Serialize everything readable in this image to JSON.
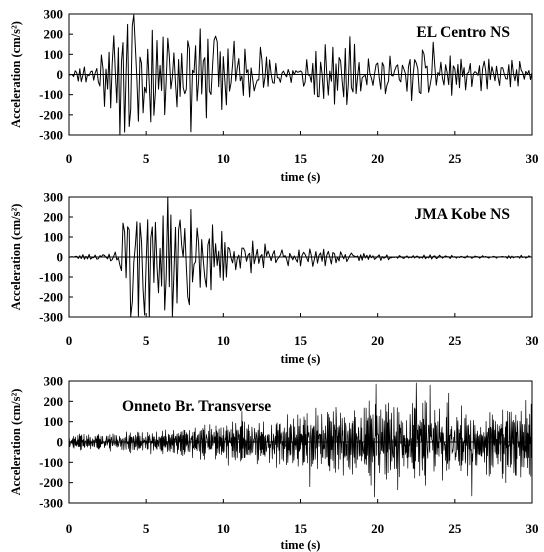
{
  "chart_data": [
    {
      "type": "line",
      "title": "EL Centro NS",
      "xlabel": "time (s)",
      "ylabel": "Acceleration (cm/s²)",
      "xlim": [
        0,
        30
      ],
      "ylim": [
        -300,
        300
      ],
      "xticks": [
        "0",
        "5",
        "10",
        "15",
        "20",
        "25",
        "30"
      ],
      "yticks": [
        "300",
        "200",
        "100",
        "0",
        "-100",
        "-200",
        "-300"
      ],
      "grid": false,
      "series": [
        {
          "color": "#000000",
          "dt": 0.1,
          "duration": 30,
          "seed": 11,
          "envelope": [
            [
              0,
              0.02
            ],
            [
              1,
              0.15
            ],
            [
              2,
              0.35
            ],
            [
              3,
              0.75
            ],
            [
              4,
              0.9
            ],
            [
              5,
              0.9
            ],
            [
              6,
              0.55
            ],
            [
              7,
              0.6
            ],
            [
              8,
              0.7
            ],
            [
              9,
              0.75
            ],
            [
              10,
              0.6
            ],
            [
              11,
              0.45
            ],
            [
              12,
              0.45
            ],
            [
              13,
              0.3
            ],
            [
              14,
              0.25
            ],
            [
              15,
              0.25
            ],
            [
              16,
              0.35
            ],
            [
              17,
              0.4
            ],
            [
              18,
              0.45
            ],
            [
              19,
              0.4
            ],
            [
              20,
              0.3
            ],
            [
              21,
              0.4
            ],
            [
              22,
              0.3
            ],
            [
              23,
              0.5
            ],
            [
              24,
              0.45
            ],
            [
              25,
              0.2
            ],
            [
              26,
              0.2
            ],
            [
              27,
              0.25
            ],
            [
              28,
              0.2
            ],
            [
              29,
              0.2
            ],
            [
              30,
              0.1
            ]
          ],
          "spikes": [
            [
              4.15,
              295
            ],
            [
              4.0,
              -175
            ],
            [
              5.3,
              -235
            ],
            [
              4.75,
              -190
            ],
            [
              6.4,
              180
            ],
            [
              7.0,
              -160
            ],
            [
              8.9,
              -215
            ],
            [
              9.5,
              190
            ],
            [
              10.7,
              165
            ],
            [
              10.2,
              -150
            ],
            [
              23.6,
              160
            ],
            [
              18.5,
              150
            ],
            [
              2.6,
              110
            ],
            [
              3.1,
              -140
            ],
            [
              12.4,
              135
            ],
            [
              16.2,
              -110
            ]
          ]
        }
      ]
    },
    {
      "type": "line",
      "title": "JMA Kobe NS",
      "xlabel": "time (s)",
      "ylabel": "Acceleration (cm/s²)",
      "xlim": [
        0,
        30
      ],
      "ylim": [
        -300,
        300
      ],
      "xticks": [
        "0",
        "5",
        "10",
        "15",
        "20",
        "25",
        "30"
      ],
      "yticks": [
        "300",
        "200",
        "100",
        "0",
        "-100",
        "-200",
        "-300"
      ],
      "grid": false,
      "series": [
        {
          "color": "#000000",
          "dt": 0.1,
          "duration": 30,
          "seed": 23,
          "envelope": [
            [
              0,
              0.02
            ],
            [
              1,
              0.04
            ],
            [
              2,
              0.06
            ],
            [
              3,
              0.1
            ],
            [
              3.4,
              0.5
            ],
            [
              4,
              0.8
            ],
            [
              5,
              0.9
            ],
            [
              6,
              0.8
            ],
            [
              7,
              0.75
            ],
            [
              8,
              0.6
            ],
            [
              9,
              0.45
            ],
            [
              10,
              0.35
            ],
            [
              11,
              0.28
            ],
            [
              12,
              0.22
            ],
            [
              13,
              0.2
            ],
            [
              14,
              0.18
            ],
            [
              15,
              0.15
            ],
            [
              16,
              0.12
            ],
            [
              17,
              0.12
            ],
            [
              18,
              0.08
            ],
            [
              19,
              0.06
            ],
            [
              20,
              0.05
            ],
            [
              22,
              0.03
            ],
            [
              25,
              0.02
            ],
            [
              30,
              0.02
            ]
          ],
          "spikes": [
            [
              4.9,
              -290
            ],
            [
              4.1,
              -225
            ],
            [
              6.6,
              210
            ],
            [
              6.2,
              -265
            ],
            [
              4.6,
              170
            ],
            [
              3.6,
              125
            ],
            [
              5.4,
              150
            ],
            [
              7.2,
              185
            ],
            [
              7.7,
              -200
            ],
            [
              8.3,
              145
            ],
            [
              8.9,
              -150
            ],
            [
              7.0,
              -230
            ]
          ]
        }
      ]
    },
    {
      "type": "line",
      "title": "Onneto Br. Transverse",
      "xlabel": "time (s)",
      "ylabel": "Acceleration (cm/s²)",
      "xlim": [
        0,
        30
      ],
      "ylim": [
        -300,
        300
      ],
      "xticks": [
        "0",
        "5",
        "10",
        "15",
        "20",
        "25",
        "30"
      ],
      "yticks": [
        "300",
        "200",
        "100",
        "0",
        "-100",
        "-200",
        "-300"
      ],
      "grid": false,
      "series": [
        {
          "color": "#000000",
          "dt": 0.025,
          "duration": 30,
          "seed": 37,
          "envelope": [
            [
              0,
              0.1
            ],
            [
              3,
              0.12
            ],
            [
              6,
              0.16
            ],
            [
              8,
              0.2
            ],
            [
              10,
              0.28
            ],
            [
              12,
              0.3
            ],
            [
              14,
              0.32
            ],
            [
              16,
              0.4
            ],
            [
              18,
              0.45
            ],
            [
              20,
              0.55
            ],
            [
              22,
              0.55
            ],
            [
              24,
              0.5
            ],
            [
              26,
              0.45
            ],
            [
              28,
              0.45
            ],
            [
              30,
              0.55
            ]
          ],
          "spikes": [
            [
              19.9,
              285
            ],
            [
              22.5,
              290
            ],
            [
              19.8,
              -270
            ],
            [
              23.4,
              280
            ],
            [
              26.1,
              -265
            ],
            [
              15.6,
              -220
            ],
            [
              21.3,
              -235
            ],
            [
              24.6,
              240
            ],
            [
              29.6,
              205
            ],
            [
              17.3,
              170
            ],
            [
              28.3,
              -200
            ],
            [
              11.2,
              150
            ]
          ]
        }
      ]
    }
  ]
}
